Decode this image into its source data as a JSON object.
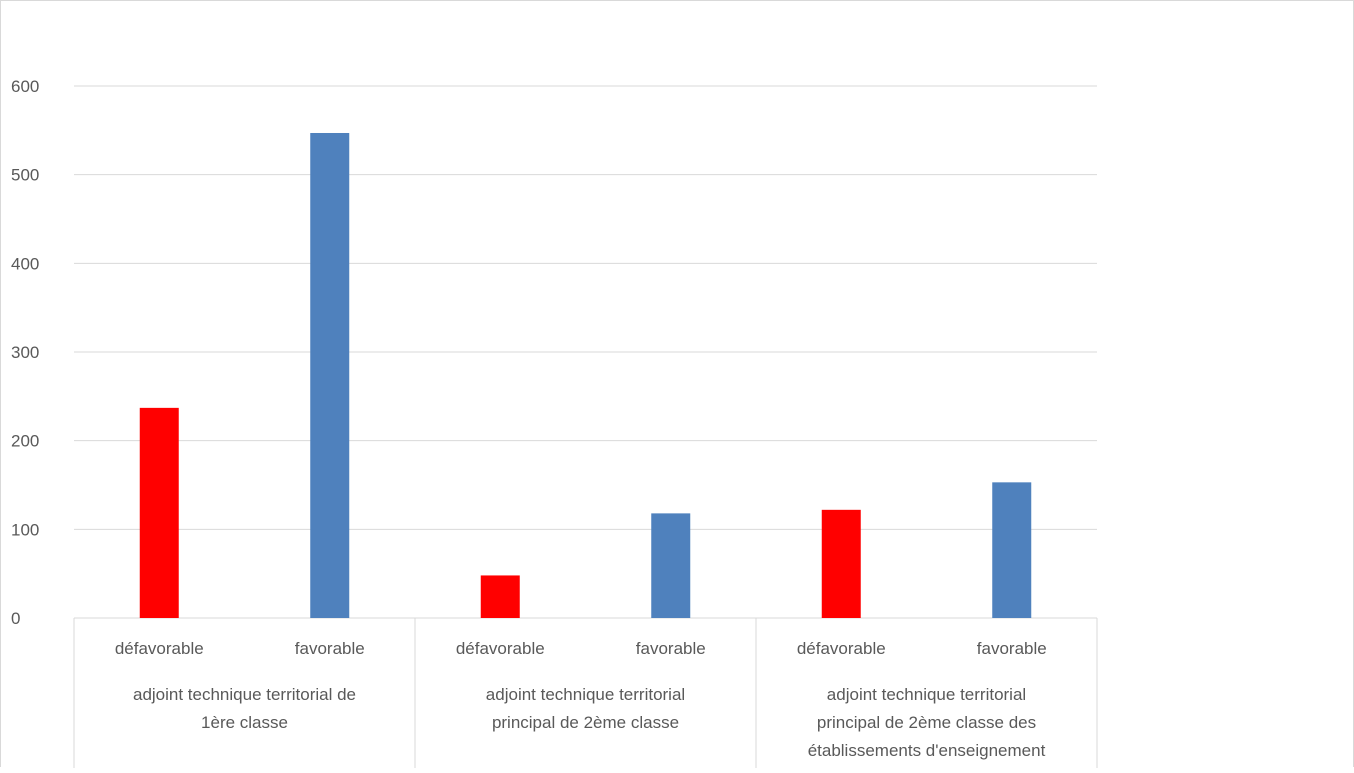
{
  "chart_data": {
    "type": "bar",
    "title": "",
    "xlabel": "",
    "ylabel": "",
    "ylim": [
      0,
      650
    ],
    "yticks": [
      0,
      100,
      200,
      300,
      400,
      500,
      600
    ],
    "grid": true,
    "legend": "none",
    "groups": [
      {
        "label_lines": [
          "adjoint technique territorial de",
          "1ère classe"
        ],
        "bars": [
          {
            "label": "défavorable",
            "value": 237,
            "color": "#ff0000"
          },
          {
            "label": "favorable",
            "value": 547,
            "color": "#4f81bd"
          }
        ]
      },
      {
        "label_lines": [
          "adjoint technique territorial",
          "principal de 2ème classe"
        ],
        "bars": [
          {
            "label": "défavorable",
            "value": 48,
            "color": "#ff0000"
          },
          {
            "label": "favorable",
            "value": 118,
            "color": "#4f81bd"
          }
        ]
      },
      {
        "label_lines": [
          "adjoint technique territorial",
          "principal de 2ème classe des",
          "établissements d'enseignement"
        ],
        "bars": [
          {
            "label": "défavorable",
            "value": 122,
            "color": "#ff0000"
          },
          {
            "label": "favorable",
            "value": 153,
            "color": "#4f81bd"
          }
        ]
      }
    ],
    "colors": {
      "defavorable": "#ff0000",
      "favorable": "#4f81bd",
      "grid": "#d9d9d9",
      "text": "#595959"
    }
  }
}
